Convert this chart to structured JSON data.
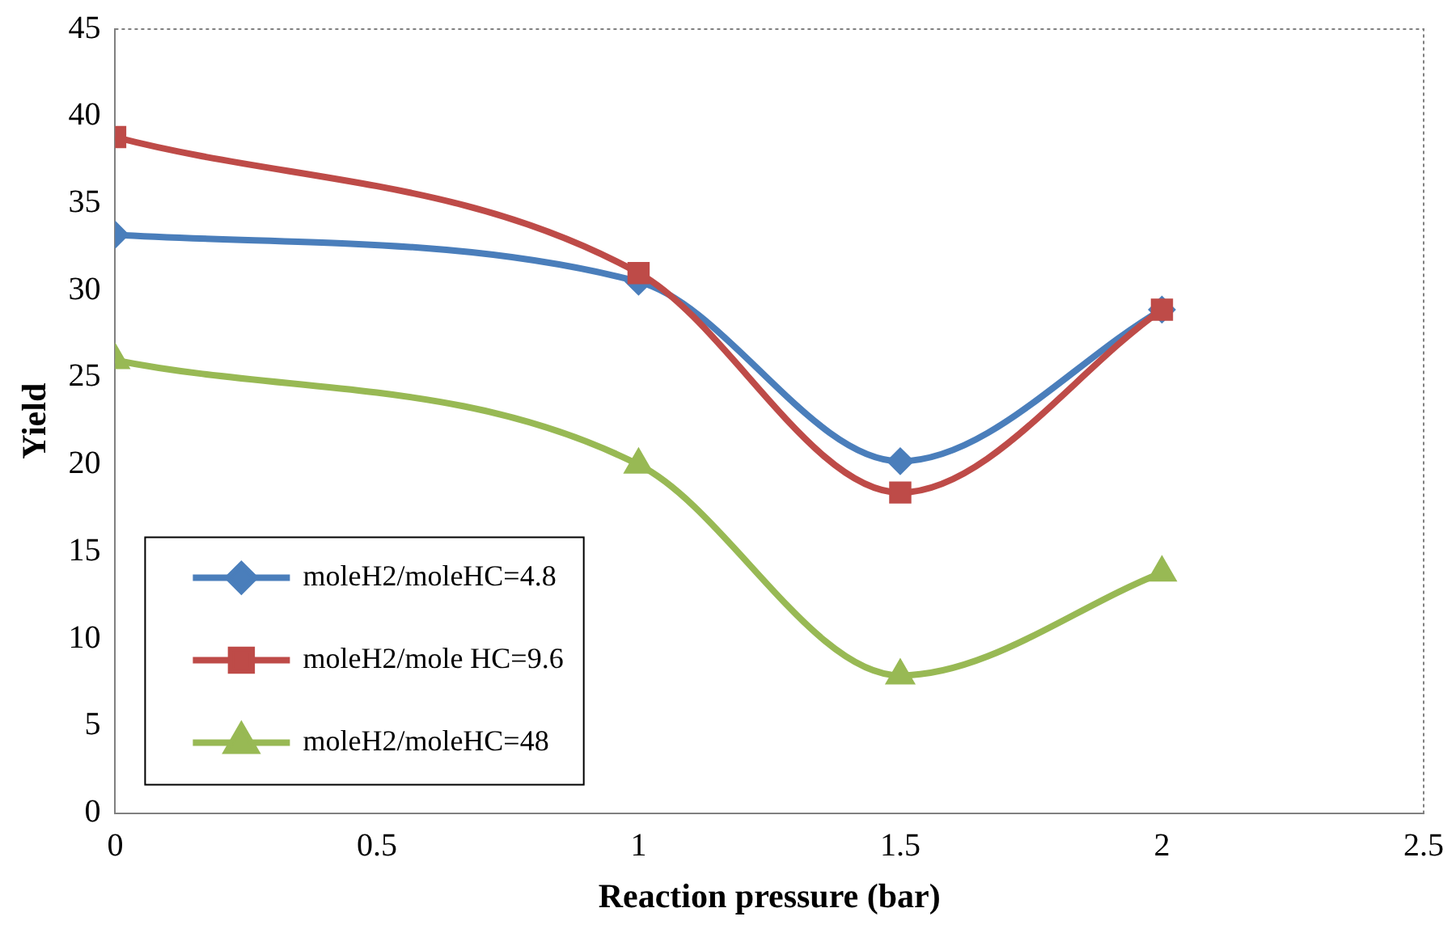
{
  "chart_data": {
    "type": "line",
    "xlabel": "Reaction pressure (bar)",
    "ylabel": "Yield",
    "x": [
      0,
      1,
      1.5,
      2
    ],
    "series": [
      {
        "name": "moleH2/moleHC=4.8",
        "color": "#4a7ebb",
        "marker": "diamond",
        "values": [
          33.2,
          30.5,
          20.2,
          28.9
        ]
      },
      {
        "name": "moleH2/mole HC=9.6",
        "color": "#be4b48",
        "marker": "square",
        "values": [
          38.8,
          31.0,
          18.4,
          28.9
        ]
      },
      {
        "name": "moleH2/moleHC=48",
        "color": "#98b954",
        "marker": "triangle",
        "values": [
          26.0,
          20.0,
          7.9,
          13.8
        ]
      }
    ],
    "xlim": [
      0,
      2.5
    ],
    "xticks": [
      0,
      0.5,
      1,
      1.5,
      2,
      2.5
    ],
    "ylim": [
      0,
      45
    ],
    "yticks": [
      0,
      5,
      10,
      15,
      20,
      25,
      30,
      35,
      40,
      45
    ],
    "grid": false,
    "legend": "bottom left",
    "line_style": "solid"
  }
}
